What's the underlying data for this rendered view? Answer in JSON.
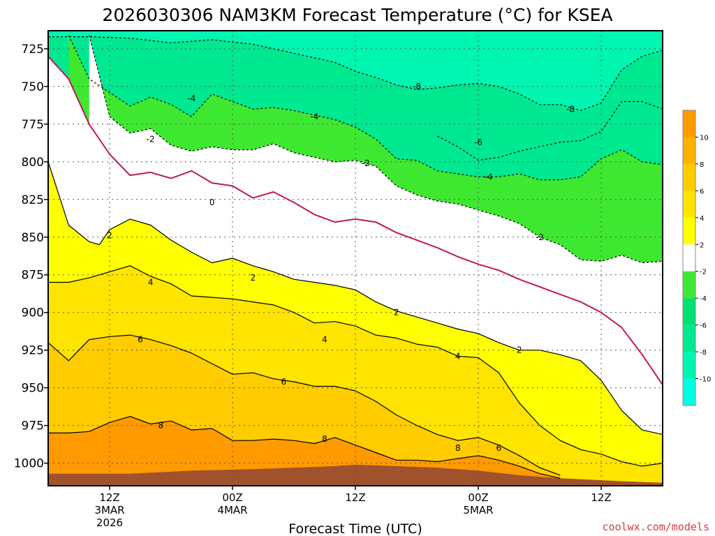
{
  "chart_data": {
    "type": "contour",
    "title": "2026030306 NAM3KM Forecast Temperature (°C) for KSEA",
    "xlabel": "Forecast Time (UTC)",
    "ylabel": "",
    "credit": "coolwx.com/models",
    "y_ticks": [
      725,
      750,
      775,
      800,
      825,
      850,
      875,
      900,
      925,
      950,
      975,
      1000
    ],
    "ylim": [
      1015,
      713
    ],
    "xlim_hours": [
      0,
      60
    ],
    "x_ticks": [
      {
        "hour": 6,
        "l1": "12Z",
        "l2": "3MAR",
        "l3": "2026"
      },
      {
        "hour": 18,
        "l1": "00Z",
        "l2": "4MAR",
        "l3": ""
      },
      {
        "hour": 30,
        "l1": "12Z",
        "l2": "",
        "l3": ""
      },
      {
        "hour": 42,
        "l1": "00Z",
        "l2": "5MAR",
        "l3": ""
      },
      {
        "hour": 54,
        "l1": "12Z",
        "l2": "",
        "l3": ""
      }
    ],
    "colorbar": {
      "levels": [
        -12,
        -10,
        -8,
        -6,
        -4,
        -2,
        2,
        4,
        6,
        8,
        10,
        12
      ],
      "labels": [
        "-10",
        "-8",
        "-6",
        "-4",
        "-2",
        "2",
        "4",
        "6",
        "8",
        "10"
      ],
      "colors": [
        "#00ffe0",
        "#00f5b0",
        "#00e890",
        "#00e070",
        "#3ee830",
        "#ffffff",
        "#ffff00",
        "#ffe400",
        "#ffcc00",
        "#ffb000",
        "#ff9a00"
      ]
    },
    "contours": [
      {
        "temp": -8,
        "points": [
          [
            0,
            717
          ],
          [
            4,
            717
          ],
          [
            8,
            718
          ],
          [
            12,
            721
          ],
          [
            16,
            719
          ],
          [
            20,
            722
          ],
          [
            24,
            728
          ],
          [
            28,
            734
          ],
          [
            30,
            740
          ],
          [
            32,
            744
          ],
          [
            34,
            749
          ],
          [
            36,
            752
          ],
          [
            38,
            751
          ],
          [
            40,
            749
          ],
          [
            42,
            748
          ],
          [
            44,
            750
          ],
          [
            46,
            755
          ],
          [
            48,
            762
          ],
          [
            50,
            762
          ],
          [
            52,
            766
          ],
          [
            54,
            761
          ],
          [
            56,
            739
          ],
          [
            58,
            730
          ],
          [
            60,
            726
          ]
        ]
      },
      {
        "temp": -6,
        "points": [
          [
            38,
            783
          ],
          [
            40,
            790
          ],
          [
            42,
            799
          ],
          [
            44,
            797
          ],
          [
            46,
            793
          ],
          [
            48,
            790
          ],
          [
            50,
            787
          ],
          [
            52,
            786
          ],
          [
            54,
            780
          ],
          [
            56,
            760
          ],
          [
            58,
            760
          ],
          [
            60,
            765
          ]
        ]
      },
      {
        "temp": -4,
        "points": [
          [
            2,
            716
          ],
          [
            4,
            745
          ],
          [
            6,
            754
          ],
          [
            8,
            763
          ],
          [
            10,
            757
          ],
          [
            12,
            762
          ],
          [
            14,
            770
          ],
          [
            16,
            755
          ],
          [
            18,
            760
          ],
          [
            20,
            765
          ],
          [
            22,
            764
          ],
          [
            24,
            766
          ],
          [
            26,
            769
          ],
          [
            28,
            772
          ],
          [
            30,
            777
          ],
          [
            32,
            785
          ],
          [
            34,
            798
          ],
          [
            36,
            799
          ],
          [
            38,
            806
          ],
          [
            40,
            808
          ],
          [
            42,
            810
          ],
          [
            44,
            810
          ],
          [
            46,
            808
          ],
          [
            48,
            812
          ],
          [
            50,
            812
          ],
          [
            52,
            810
          ],
          [
            54,
            798
          ],
          [
            56,
            792
          ],
          [
            58,
            800
          ],
          [
            60,
            802
          ]
        ]
      },
      {
        "temp": -2,
        "points": [
          [
            4,
            716
          ],
          [
            6,
            770
          ],
          [
            8,
            781
          ],
          [
            10,
            778
          ],
          [
            12,
            789
          ],
          [
            14,
            793
          ],
          [
            16,
            790
          ],
          [
            18,
            792
          ],
          [
            20,
            792
          ],
          [
            22,
            788
          ],
          [
            24,
            794
          ],
          [
            26,
            797
          ],
          [
            28,
            800
          ],
          [
            30,
            799
          ],
          [
            32,
            803
          ],
          [
            34,
            816
          ],
          [
            36,
            822
          ],
          [
            38,
            826
          ],
          [
            40,
            828
          ],
          [
            42,
            832
          ],
          [
            44,
            836
          ],
          [
            46,
            841
          ],
          [
            48,
            850
          ],
          [
            50,
            855
          ],
          [
            52,
            865
          ],
          [
            54,
            866
          ],
          [
            56,
            862
          ],
          [
            58,
            867
          ],
          [
            60,
            866
          ]
        ]
      },
      {
        "temp": 0,
        "points": [
          [
            0,
            730
          ],
          [
            2,
            745
          ],
          [
            4,
            775
          ],
          [
            6,
            795
          ],
          [
            8,
            809
          ],
          [
            10,
            807
          ],
          [
            12,
            811
          ],
          [
            14,
            806
          ],
          [
            16,
            814
          ],
          [
            18,
            816
          ],
          [
            20,
            824
          ],
          [
            22,
            820
          ],
          [
            24,
            827
          ],
          [
            26,
            835
          ],
          [
            28,
            840
          ],
          [
            30,
            838
          ],
          [
            32,
            840
          ],
          [
            34,
            847
          ],
          [
            36,
            852
          ],
          [
            38,
            857
          ],
          [
            40,
            863
          ],
          [
            42,
            868
          ],
          [
            44,
            872
          ],
          [
            46,
            878
          ],
          [
            48,
            883
          ],
          [
            50,
            888
          ],
          [
            52,
            893
          ],
          [
            54,
            900
          ],
          [
            56,
            910
          ],
          [
            58,
            928
          ],
          [
            60,
            948
          ]
        ]
      },
      {
        "temp": 2,
        "points": [
          [
            0,
            800
          ],
          [
            2,
            842
          ],
          [
            4,
            853
          ],
          [
            5,
            855
          ],
          [
            6,
            845
          ],
          [
            8,
            838
          ],
          [
            10,
            842
          ],
          [
            12,
            852
          ],
          [
            14,
            860
          ],
          [
            16,
            867
          ],
          [
            18,
            864
          ],
          [
            20,
            869
          ],
          [
            22,
            873
          ],
          [
            24,
            878
          ],
          [
            26,
            880
          ],
          [
            28,
            882
          ],
          [
            30,
            885
          ],
          [
            32,
            893
          ],
          [
            34,
            899
          ],
          [
            36,
            903
          ],
          [
            38,
            907
          ],
          [
            40,
            911
          ],
          [
            42,
            914
          ],
          [
            44,
            920
          ],
          [
            46,
            925
          ],
          [
            48,
            925
          ],
          [
            50,
            928
          ],
          [
            52,
            932
          ],
          [
            54,
            945
          ],
          [
            56,
            965
          ],
          [
            58,
            978
          ],
          [
            60,
            981
          ]
        ]
      },
      {
        "temp": 4,
        "points": [
          [
            0,
            880
          ],
          [
            2,
            880
          ],
          [
            4,
            877
          ],
          [
            6,
            873
          ],
          [
            8,
            869
          ],
          [
            10,
            876
          ],
          [
            12,
            881
          ],
          [
            14,
            889
          ],
          [
            16,
            890
          ],
          [
            18,
            891
          ],
          [
            20,
            893
          ],
          [
            22,
            895
          ],
          [
            24,
            900
          ],
          [
            26,
            907
          ],
          [
            28,
            906
          ],
          [
            30,
            909
          ],
          [
            32,
            915
          ],
          [
            34,
            917
          ],
          [
            36,
            921
          ],
          [
            38,
            923
          ],
          [
            40,
            929
          ],
          [
            42,
            930
          ],
          [
            44,
            940
          ],
          [
            46,
            960
          ],
          [
            48,
            975
          ],
          [
            50,
            985
          ],
          [
            52,
            991
          ],
          [
            54,
            994
          ],
          [
            56,
            999
          ],
          [
            58,
            1002
          ],
          [
            60,
            1000
          ]
        ]
      },
      {
        "temp": 6,
        "points": [
          [
            0,
            920
          ],
          [
            2,
            932
          ],
          [
            4,
            918
          ],
          [
            6,
            916
          ],
          [
            8,
            915
          ],
          [
            10,
            918
          ],
          [
            12,
            922
          ],
          [
            14,
            927
          ],
          [
            16,
            934
          ],
          [
            18,
            941
          ],
          [
            20,
            940
          ],
          [
            22,
            944
          ],
          [
            24,
            946
          ],
          [
            26,
            949
          ],
          [
            28,
            949
          ],
          [
            30,
            952
          ],
          [
            32,
            959
          ],
          [
            34,
            968
          ],
          [
            36,
            975
          ],
          [
            38,
            981
          ],
          [
            40,
            985
          ],
          [
            42,
            983
          ],
          [
            44,
            988
          ],
          [
            46,
            995
          ],
          [
            48,
            1003
          ],
          [
            50,
            1008
          ]
        ]
      },
      {
        "temp": 8,
        "points": [
          [
            0,
            980
          ],
          [
            2,
            980
          ],
          [
            4,
            979
          ],
          [
            6,
            973
          ],
          [
            8,
            969
          ],
          [
            10,
            974
          ],
          [
            12,
            972
          ],
          [
            14,
            978
          ],
          [
            16,
            977
          ],
          [
            18,
            985
          ],
          [
            20,
            985
          ],
          [
            22,
            984
          ],
          [
            24,
            985
          ],
          [
            26,
            987
          ],
          [
            28,
            983
          ],
          [
            30,
            988
          ],
          [
            32,
            993
          ],
          [
            34,
            998
          ],
          [
            36,
            998
          ],
          [
            38,
            999
          ],
          [
            40,
            997
          ],
          [
            42,
            995
          ],
          [
            44,
            998
          ],
          [
            46,
            1002
          ],
          [
            48,
            1007
          ],
          [
            50,
            1010
          ]
        ]
      }
    ],
    "contour_labels": [
      {
        "text": "-8",
        "hour": 36,
        "p": 750
      },
      {
        "text": "-8",
        "hour": 51,
        "p": 765
      },
      {
        "text": "-6",
        "hour": 42,
        "p": 787
      },
      {
        "text": "-4",
        "hour": 14,
        "p": 758
      },
      {
        "text": "-4",
        "hour": 26,
        "p": 770
      },
      {
        "text": "-4",
        "hour": 43,
        "p": 810
      },
      {
        "text": "-2",
        "hour": 10,
        "p": 785
      },
      {
        "text": "-2",
        "hour": 31,
        "p": 801
      },
      {
        "text": "-2",
        "hour": 48,
        "p": 850
      },
      {
        "text": "0",
        "hour": 16,
        "p": 827
      },
      {
        "text": "2",
        "hour": 6,
        "p": 849
      },
      {
        "text": "2",
        "hour": 20,
        "p": 877
      },
      {
        "text": "2",
        "hour": 34,
        "p": 900
      },
      {
        "text": "2",
        "hour": 46,
        "p": 925
      },
      {
        "text": "4",
        "hour": 10,
        "p": 880
      },
      {
        "text": "4",
        "hour": 27,
        "p": 918
      },
      {
        "text": "4",
        "hour": 40,
        "p": 929
      },
      {
        "text": "6",
        "hour": 9,
        "p": 918
      },
      {
        "text": "6",
        "hour": 23,
        "p": 946
      },
      {
        "text": "6",
        "hour": 44,
        "p": 990
      },
      {
        "text": "8",
        "hour": 11,
        "p": 975
      },
      {
        "text": "8",
        "hour": 27,
        "p": 984
      },
      {
        "text": "8",
        "hour": 40,
        "p": 990
      }
    ],
    "ground": [
      [
        0,
        1007
      ],
      [
        8,
        1007
      ],
      [
        14,
        1005
      ],
      [
        20,
        1004
      ],
      [
        24,
        1003
      ],
      [
        28,
        1002
      ],
      [
        30,
        1001
      ],
      [
        34,
        1002
      ],
      [
        38,
        1003
      ],
      [
        42,
        1005
      ],
      [
        46,
        1008
      ],
      [
        50,
        1010
      ],
      [
        56,
        1012
      ],
      [
        60,
        1013
      ]
    ]
  }
}
